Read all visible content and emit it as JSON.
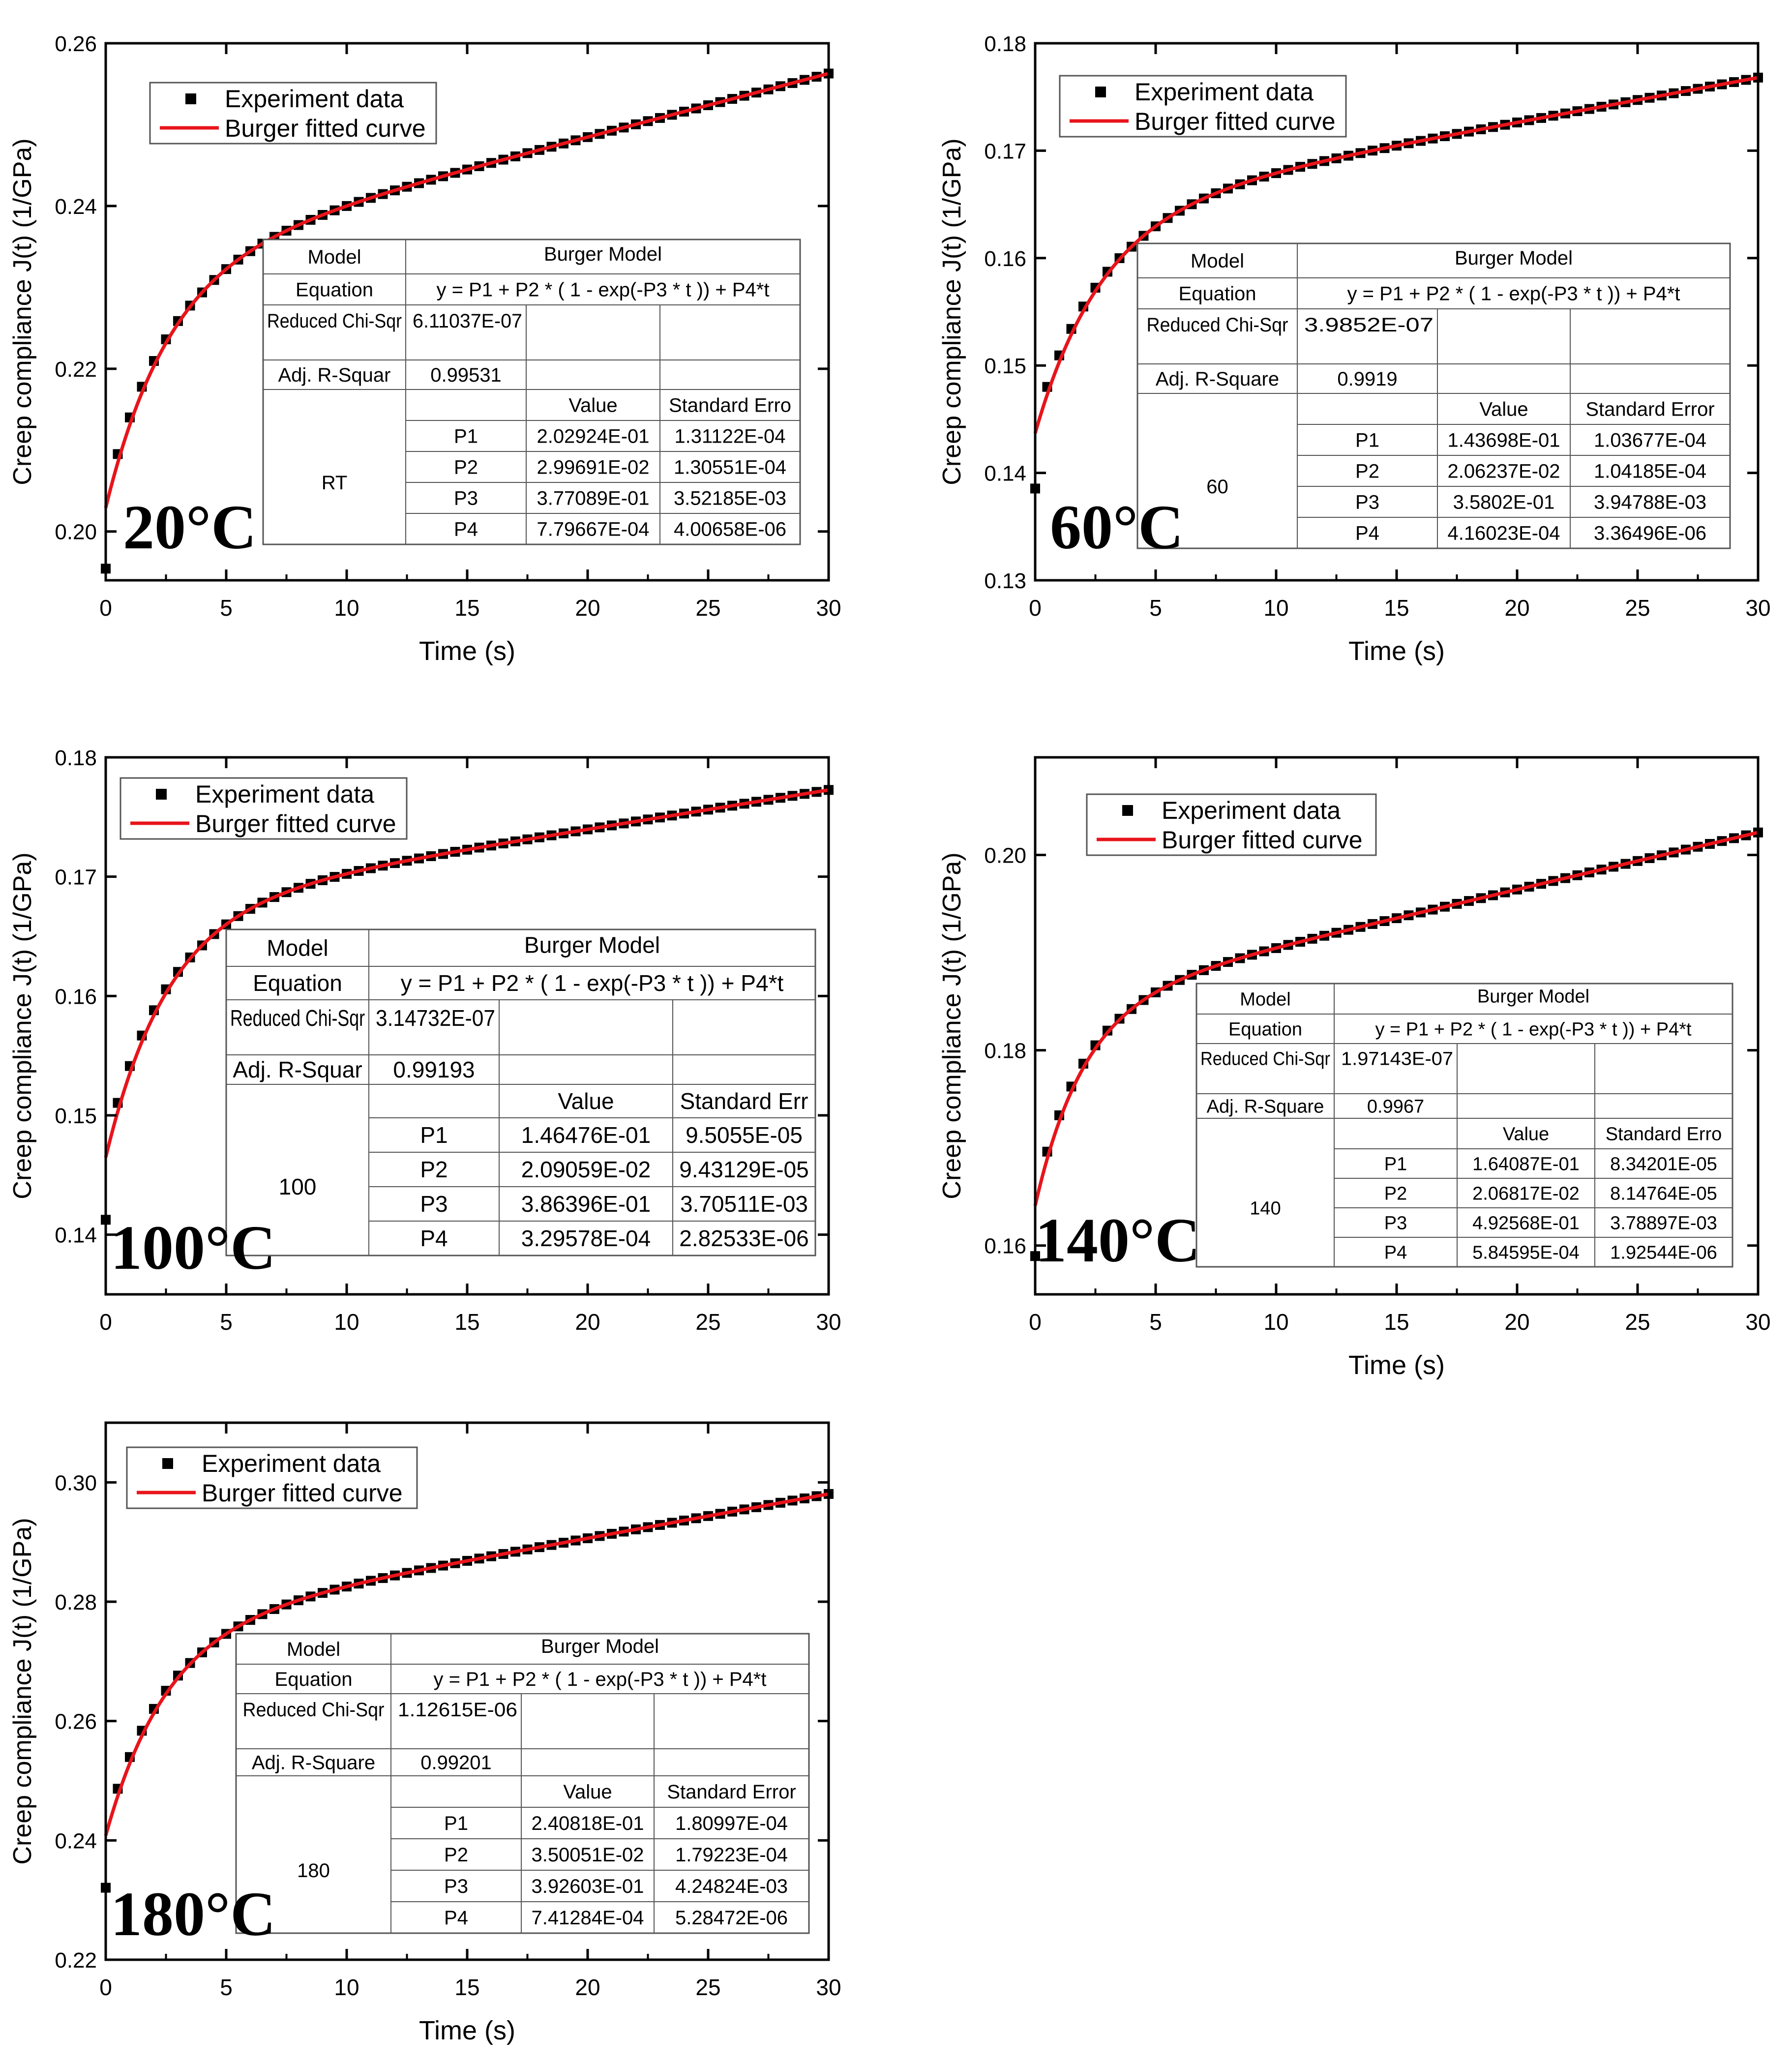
{
  "colors": {
    "fit_curve": "#e8141b",
    "markers": "#000000",
    "axes": "#000000",
    "table_border": "#555555",
    "background": "#ffffff"
  },
  "legend": {
    "marker_label": "Experiment data",
    "line_label": "Burger fitted curve",
    "marker_icon": "square-marker-icon",
    "line_icon": "red-line-icon"
  },
  "chart_data": [
    {
      "type": "scatter",
      "temperature_label": "20°C",
      "xlabel": "Time (s)",
      "ylabel": "Creep compliance J(t) (1/GPa)",
      "xlim": [
        0,
        30
      ],
      "ylim": [
        0.194,
        0.26
      ],
      "x_ticks": [
        "0",
        "5",
        "10",
        "15",
        "20",
        "25",
        "30"
      ],
      "y_ticks": [
        0.2,
        0.22,
        0.24,
        0.26
      ],
      "y_tick_labels": [
        "0.20",
        "0.22",
        "0.24",
        "0.26"
      ],
      "legend_position": "top-left",
      "series": [
        {
          "name": "Experiment data",
          "kind": "markers"
        },
        {
          "name": "Burger fitted curve",
          "kind": "line",
          "P1": 0.202924,
          "P2": 0.0299691,
          "P3": 0.377089,
          "P4": 0.000779667
        }
      ],
      "fit_table": {
        "model_label": "Model",
        "model_value": "Burger Model",
        "equation_label": "Equation",
        "equation_value": "y = P1 + P2 * ( 1 - exp(-P3 * t )) + P4*t",
        "chisqr_label": "Reduced Chi-Sqr",
        "chisqr_value": "6.11037E-07",
        "r2_label": "Adj. R-Squar",
        "r2_value": "0.99531",
        "value_header": "Value",
        "error_header": "Standard Erro",
        "group_label": "RT",
        "params": [
          {
            "name": "P1",
            "value": "2.02924E-01",
            "error": "1.31122E-04"
          },
          {
            "name": "P2",
            "value": "2.99691E-02",
            "error": "1.30551E-04"
          },
          {
            "name": "P3",
            "value": "3.77089E-01",
            "error": "3.52185E-03"
          },
          {
            "name": "P4",
            "value": "7.79667E-04",
            "error": "4.00658E-06"
          }
        ]
      }
    },
    {
      "type": "scatter",
      "temperature_label": "60°C",
      "xlabel": "Time (s)",
      "ylabel": "Creep compliance J(t) (1/GPa)",
      "xlim": [
        0,
        30
      ],
      "ylim": [
        0.13,
        0.18
      ],
      "x_ticks": [
        "0",
        "5",
        "10",
        "15",
        "20",
        "25",
        "30"
      ],
      "y_ticks": [
        0.13,
        0.14,
        0.15,
        0.16,
        0.17,
        0.18
      ],
      "y_tick_labels": [
        "0.13",
        "0.14",
        "0.15",
        "0.16",
        "0.17",
        "0.18"
      ],
      "legend_position": "top-left",
      "series": [
        {
          "name": "Experiment data",
          "kind": "markers"
        },
        {
          "name": "Burger fitted curve",
          "kind": "line",
          "P1": 0.143698,
          "P2": 0.0206237,
          "P3": 0.35802,
          "P4": 0.000416023
        }
      ],
      "fit_table": {
        "model_label": "Model",
        "model_value": "Burger Model",
        "equation_label": "Equation",
        "equation_value": "y = P1 + P2 * ( 1 - exp(-P3 * t )) + P4*t",
        "chisqr_label": "Reduced Chi-Sqr",
        "chisqr_value": "3.9852E-07",
        "r2_label": "Adj. R-Square",
        "r2_value": "0.9919",
        "value_header": "Value",
        "error_header": "Standard Error",
        "group_label": "60",
        "params": [
          {
            "name": "P1",
            "value": "1.43698E-01",
            "error": "1.03677E-04"
          },
          {
            "name": "P2",
            "value": "2.06237E-02",
            "error": "1.04185E-04"
          },
          {
            "name": "P3",
            "value": "3.5802E-01",
            "error": "3.94788E-03"
          },
          {
            "name": "P4",
            "value": "4.16023E-04",
            "error": "3.36496E-06"
          }
        ]
      }
    },
    {
      "type": "scatter",
      "temperature_label": "100°C",
      "xlabel": "",
      "ylabel": "Creep compliance J(t) (1/GPa)",
      "xlim": [
        0,
        30
      ],
      "ylim": [
        0.135,
        0.18
      ],
      "x_ticks": [
        "0",
        "5",
        "10",
        "15",
        "20",
        "25",
        "30"
      ],
      "y_ticks": [
        0.14,
        0.15,
        0.16,
        0.17,
        0.18
      ],
      "y_tick_labels": [
        "0.14",
        "0.15",
        "0.16",
        "0.17",
        "0.18"
      ],
      "legend_position": "top-left",
      "series": [
        {
          "name": "Experiment data",
          "kind": "markers"
        },
        {
          "name": "Burger fitted curve",
          "kind": "line",
          "P1": 0.146476,
          "P2": 0.0209059,
          "P3": 0.386396,
          "P4": 0.000329578
        }
      ],
      "fit_table": {
        "model_label": "Model",
        "model_value": "Burger Model",
        "equation_label": "Equation",
        "equation_value": "y = P1 + P2 * ( 1 - exp(-P3 * t )) + P4*t",
        "chisqr_label": "Reduced Chi-Sqr",
        "chisqr_value": "3.14732E-07",
        "r2_label": "Adj. R-Squar",
        "r2_value": "0.99193",
        "value_header": "Value",
        "error_header": "Standard Err",
        "group_label": "100",
        "params": [
          {
            "name": "P1",
            "value": "1.46476E-01",
            "error": "9.5055E-05"
          },
          {
            "name": "P2",
            "value": "2.09059E-02",
            "error": "9.43129E-05"
          },
          {
            "name": "P3",
            "value": "3.86396E-01",
            "error": "3.70511E-03"
          },
          {
            "name": "P4",
            "value": "3.29578E-04",
            "error": "2.82533E-06"
          }
        ]
      }
    },
    {
      "type": "scatter",
      "temperature_label": "140°C",
      "xlabel": "Time (s)",
      "ylabel": "Creep compliance J(t) (1/GPa)",
      "xlim": [
        0,
        30
      ],
      "ylim": [
        0.155,
        0.21
      ],
      "x_ticks": [
        "0",
        "5",
        "10",
        "15",
        "20",
        "25",
        "30"
      ],
      "y_ticks": [
        0.16,
        0.18,
        0.2
      ],
      "y_tick_labels": [
        "0.16",
        "0.18",
        "0.20"
      ],
      "legend_position": "top-left",
      "series": [
        {
          "name": "Experiment data",
          "kind": "markers"
        },
        {
          "name": "Burger fitted curve",
          "kind": "line",
          "P1": 0.164087,
          "P2": 0.0206817,
          "P3": 0.492568,
          "P4": 0.000584595
        }
      ],
      "fit_table": {
        "model_label": "Model",
        "model_value": "Burger Model",
        "equation_label": "Equation",
        "equation_value": "y = P1 + P2 * ( 1 - exp(-P3 * t )) + P4*t",
        "chisqr_label": "Reduced Chi-Sqr",
        "chisqr_value": "1.97143E-07",
        "r2_label": "Adj. R-Square",
        "r2_value": "0.9967",
        "value_header": "Value",
        "error_header": "Standard Erro",
        "group_label": "140",
        "params": [
          {
            "name": "P1",
            "value": "1.64087E-01",
            "error": "8.34201E-05"
          },
          {
            "name": "P2",
            "value": "2.06817E-02",
            "error": "8.14764E-05"
          },
          {
            "name": "P3",
            "value": "4.92568E-01",
            "error": "3.78897E-03"
          },
          {
            "name": "P4",
            "value": "5.84595E-04",
            "error": "1.92544E-06"
          }
        ]
      }
    },
    {
      "type": "scatter",
      "temperature_label": "180°C",
      "xlabel": "Time (s)",
      "ylabel": "Creep compliance J(t) (1/GPa)",
      "xlim": [
        0,
        30
      ],
      "ylim": [
        0.22,
        0.31
      ],
      "x_ticks": [
        "0",
        "5",
        "10",
        "15",
        "20",
        "25",
        "30"
      ],
      "y_ticks": [
        0.22,
        0.24,
        0.26,
        0.28,
        0.3
      ],
      "y_tick_labels": [
        "0.22",
        "0.24",
        "0.26",
        "0.28",
        "0.30"
      ],
      "legend_position": "top-left",
      "series": [
        {
          "name": "Experiment data",
          "kind": "markers"
        },
        {
          "name": "Burger fitted curve",
          "kind": "line",
          "P1": 0.240818,
          "P2": 0.0350051,
          "P3": 0.392603,
          "P4": 0.000741284
        }
      ],
      "fit_table": {
        "model_label": "Model",
        "model_value": "Burger Model",
        "equation_label": "Equation",
        "equation_value": "y = P1 + P2 * ( 1 - exp(-P3 * t )) + P4*t",
        "chisqr_label": "Reduced Chi-Sqr",
        "chisqr_value": "1.12615E-06",
        "r2_label": "Adj. R-Square",
        "r2_value": "0.99201",
        "value_header": "Value",
        "error_header": "Standard Error",
        "group_label": "180",
        "params": [
          {
            "name": "P1",
            "value": "2.40818E-01",
            "error": "1.80997E-04"
          },
          {
            "name": "P2",
            "value": "3.50051E-02",
            "error": "1.79223E-04"
          },
          {
            "name": "P3",
            "value": "3.92603E-01",
            "error": "4.24824E-03"
          },
          {
            "name": "P4",
            "value": "7.41284E-04",
            "error": "5.28472E-06"
          }
        ]
      }
    }
  ]
}
